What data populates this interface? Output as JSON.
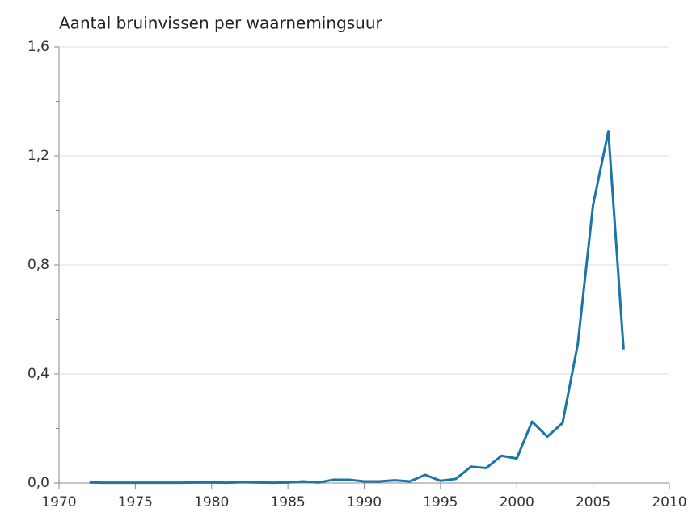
{
  "chart_data": {
    "type": "line",
    "title": "Aantal bruinvissen per waarnemingsuur",
    "x": [
      1972,
      1973,
      1974,
      1975,
      1976,
      1977,
      1978,
      1979,
      1980,
      1981,
      1982,
      1983,
      1984,
      1985,
      1986,
      1987,
      1988,
      1989,
      1990,
      1991,
      1992,
      1993,
      1994,
      1995,
      1996,
      1997,
      1998,
      1999,
      2000,
      2001,
      2002,
      2003,
      2004,
      2005,
      2006,
      2007
    ],
    "series": [
      {
        "name": "Aantal bruinvissen per waarnemingsuur",
        "color": "#1a75a8",
        "values": [
          0.002,
          0.001,
          0.001,
          0.001,
          0.001,
          0.001,
          0.001,
          0.002,
          0.002,
          0.001,
          0.003,
          0.002,
          0.001,
          0.002,
          0.006,
          0.002,
          0.012,
          0.012,
          0.006,
          0.006,
          0.01,
          0.006,
          0.03,
          0.008,
          0.015,
          0.06,
          0.055,
          0.1,
          0.09,
          0.225,
          0.17,
          0.22,
          0.51,
          1.02,
          1.29,
          0.49
        ]
      }
    ],
    "xlim": [
      1970,
      2010
    ],
    "xticks": [
      1970,
      1975,
      1980,
      1985,
      1990,
      1995,
      2000,
      2005,
      2010
    ],
    "ylim": [
      0,
      1.6
    ],
    "yticks": [
      {
        "value": 0,
        "label": "0,0"
      },
      {
        "value": 0.4,
        "label": "0,4"
      },
      {
        "value": 0.8,
        "label": "0,8"
      },
      {
        "value": 1.2,
        "label": "1,2"
      },
      {
        "value": 1.6,
        "label": "1,6"
      }
    ],
    "yminor_ticks": [
      0.2,
      0.6,
      1.0,
      1.4
    ],
    "grid": true
  }
}
